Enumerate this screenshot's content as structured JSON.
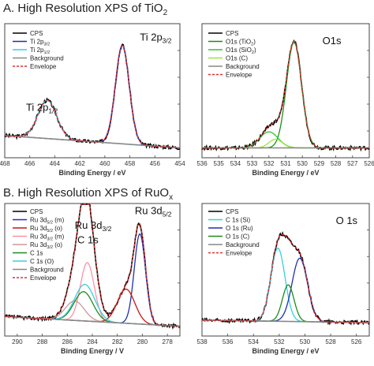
{
  "titles": {
    "a_main": "A. High Resolution XPS of TiO",
    "a_sub": "2",
    "b_main": "B. High Resolution XPS of RuO",
    "b_sub": "x"
  },
  "chart_data": [
    {
      "id": "ti2p",
      "type": "line",
      "xlabel": "Binding Energy / eV",
      "xlim": [
        468,
        454
      ],
      "xticks": [
        468,
        466,
        464,
        462,
        460,
        458,
        456,
        454
      ],
      "annotations": [
        {
          "text": "Ti 2p",
          "sub": "3/2",
          "x": 457.2,
          "y": 0.95
        },
        {
          "text": "Ti 2p",
          "sub": "1/2",
          "x": 466.3,
          "y": 0.38
        }
      ],
      "series": [
        {
          "name": "CPS",
          "color": "#000000",
          "role": "cps"
        },
        {
          "name": "Ti 2p3/2",
          "label": "Ti 2p",
          "sub": "3/2",
          "color": "#1f2fb5",
          "role": "comp",
          "peaks": [
            {
              "c": 458.6,
              "a": 0.8,
              "w": 0.55
            }
          ]
        },
        {
          "name": "Ti 2p1/2",
          "label": "Ti 2p",
          "sub": "1/2",
          "color": "#36c8e8",
          "role": "comp",
          "peaks": [
            {
              "c": 464.6,
              "a": 0.31,
              "w": 0.75
            }
          ]
        },
        {
          "name": "Background",
          "color": "#888888",
          "role": "bg"
        },
        {
          "name": "Envelope",
          "color": "#e03030",
          "role": "env"
        }
      ],
      "background": {
        "left": 0.12,
        "right": 0.02
      }
    },
    {
      "id": "o1s_ti",
      "type": "line",
      "xlabel": "Binding Energy / eV",
      "xlim": [
        536,
        526
      ],
      "xticks": [
        536,
        535,
        534,
        533,
        532,
        531,
        530,
        529,
        528,
        527,
        526
      ],
      "annotations": [
        {
          "text": "O1s",
          "sub": "",
          "x": 528.8,
          "y": 0.92
        }
      ],
      "series": [
        {
          "name": "CPS",
          "color": "#000000",
          "role": "cps"
        },
        {
          "name": "O1s (TiO2)",
          "label": "O1s (TiO",
          "sub": "2",
          "suffix": ")",
          "color": "#1c8c1c",
          "role": "comp",
          "peaks": [
            {
              "c": 530.5,
              "a": 0.86,
              "w": 0.45
            }
          ]
        },
        {
          "name": "O1s (SiO2)",
          "label": "O1s (SiO",
          "sub": "2",
          "suffix": ")",
          "color": "#36c036",
          "role": "comp",
          "peaks": [
            {
              "c": 532.0,
              "a": 0.13,
              "w": 0.55
            }
          ]
        },
        {
          "name": "O1s (C)",
          "label": "O1s (C)",
          "sub": "",
          "suffix": "",
          "color": "#9ee63a",
          "role": "comp",
          "peaks": [
            {
              "c": 531.6,
              "a": 0.07,
              "w": 0.4
            }
          ]
        },
        {
          "name": "Background",
          "color": "#888888",
          "role": "bg"
        },
        {
          "name": "Envelope",
          "color": "#e03030",
          "role": "env"
        }
      ],
      "background": {
        "left": 0.02,
        "right": 0.02
      }
    },
    {
      "id": "ru3d",
      "type": "line",
      "xlabel": "Binding Energy / V",
      "xlim": [
        291,
        277
      ],
      "xticks": [
        290,
        288,
        286,
        284,
        282,
        280,
        278
      ],
      "annotations": [
        {
          "text": "Ru 3d",
          "sub": "5/2",
          "x": 280.6,
          "y": 1.0
        },
        {
          "text": "Ru 3d",
          "sub": "3/2",
          "x": 285.4,
          "y": 0.88
        },
        {
          "text": "C 1s",
          "sub": "",
          "x": 285.2,
          "y": 0.76
        }
      ],
      "series": [
        {
          "name": "CPS",
          "color": "#000000",
          "role": "cps"
        },
        {
          "name": "Ru 3d5/2 (m)",
          "label": "Ru 3d",
          "sub": "5/2",
          "suffix": " (m)",
          "color": "#1f2fb5",
          "role": "comp",
          "peaks": [
            {
              "c": 280.2,
              "a": 0.74,
              "w": 0.45
            }
          ]
        },
        {
          "name": "Ru 3d5/2 (o)",
          "label": "Ru 3d",
          "sub": "5/2",
          "suffix": " (o)",
          "color": "#c01818",
          "role": "comp",
          "peaks": [
            {
              "c": 281.3,
              "a": 0.28,
              "w": 0.7
            }
          ]
        },
        {
          "name": "Ru 3d3/2 (m)",
          "label": "Ru 3d",
          "sub": "3/2",
          "suffix": " (m)",
          "color": "#ff8fa8",
          "role": "comp",
          "peaks": [
            {
              "c": 284.4,
              "a": 0.48,
              "w": 0.55
            }
          ]
        },
        {
          "name": "Ru 3d3/2 (o)",
          "label": "Ru 3d",
          "sub": "3/2",
          "suffix": " (o)",
          "color": "#c89898",
          "role": "comp",
          "peaks": [
            {
              "c": 285.4,
              "a": 0.16,
              "w": 0.75
            }
          ]
        },
        {
          "name": "C 1s",
          "label": "C 1s",
          "sub": "",
          "suffix": "",
          "color": "#1c8c1c",
          "role": "comp",
          "peaks": [
            {
              "c": 284.7,
              "a": 0.24,
              "w": 0.75
            }
          ]
        },
        {
          "name": "C 1s (O)",
          "label": "C 1s (O)",
          "sub": "",
          "suffix": "",
          "color": "#36d0e0",
          "role": "comp",
          "peaks": [
            {
              "c": 284.6,
              "a": 0.3,
              "w": 0.8
            }
          ]
        },
        {
          "name": "Background",
          "color": "#888888",
          "role": "bg"
        },
        {
          "name": "Envelope",
          "color": "#e03030",
          "role": "env"
        }
      ],
      "background": {
        "left": 0.1,
        "right": 0.02
      }
    },
    {
      "id": "o1s_ru",
      "type": "line",
      "xlabel": "Binding Energy / eV",
      "xlim": [
        538,
        525
      ],
      "xticks": [
        538,
        536,
        534,
        532,
        530,
        528,
        526
      ],
      "annotations": [
        {
          "text": "O 1s",
          "sub": "",
          "x": 527.6,
          "y": 0.92
        }
      ],
      "series": [
        {
          "name": "CPS",
          "color": "#000000",
          "role": "cps"
        },
        {
          "name": "C 1s (Si)",
          "label": "C 1s (Si)",
          "sub": "",
          "suffix": "",
          "color": "#36d0e0",
          "role": "comp",
          "peaks": [
            {
              "c": 532.1,
              "a": 0.6,
              "w": 0.55
            }
          ]
        },
        {
          "name": "O 1s (Ru)",
          "label": "O 1s (Ru)",
          "sub": "",
          "suffix": "",
          "color": "#1f2fb5",
          "role": "comp",
          "peaks": [
            {
              "c": 530.4,
              "a": 0.52,
              "w": 0.6
            }
          ]
        },
        {
          "name": "O 1s (C)",
          "label": "O 1s (C)",
          "sub": "",
          "suffix": "",
          "color": "#1c8c1c",
          "role": "comp",
          "peaks": [
            {
              "c": 531.3,
              "a": 0.3,
              "w": 0.45
            }
          ]
        },
        {
          "name": "Background",
          "color": "#888888",
          "role": "bg"
        },
        {
          "name": "Envelope",
          "color": "#e03030",
          "role": "env"
        }
      ],
      "background": {
        "left": 0.07,
        "right": 0.05
      }
    }
  ]
}
